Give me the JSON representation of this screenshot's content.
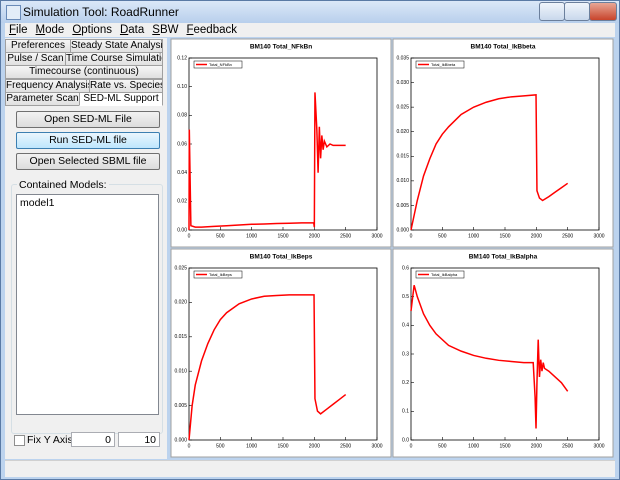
{
  "window": {
    "title": "Simulation Tool: RoadRunner"
  },
  "menu": [
    "File",
    "Mode",
    "Options",
    "Data",
    "SBW",
    "Feedback"
  ],
  "tabs": {
    "rows": [
      [
        "Preferences",
        "Steady State Analysis"
      ],
      [
        "Pulse / Scan",
        "Time Course Simulation"
      ],
      [
        "Timecourse (continuous)"
      ],
      [
        "Frequency Analysis",
        "Rate vs. Species"
      ],
      [
        "Parameter Scan",
        "SED-ML Support"
      ]
    ],
    "active": "SED-ML Support"
  },
  "buttons": [
    "Open SED-ML File",
    "Run SED-ML file",
    "Open Selected SBML file"
  ],
  "models_label": "Contained Models:",
  "models": [
    "model1"
  ],
  "fix_y_axis": {
    "label": "Fix Y Axis",
    "min": 0,
    "max": 10
  },
  "chart_data": [
    {
      "type": "line",
      "title": "BM140 Total_NFkBn",
      "legend": "upper left",
      "x": [
        0,
        5,
        30,
        100,
        200,
        400,
        600,
        800,
        1000,
        1200,
        1400,
        1600,
        1800,
        1990,
        2000,
        2010,
        2040,
        2060,
        2080,
        2100,
        2120,
        2140,
        2160,
        2200,
        2250,
        2300,
        2400,
        2500
      ],
      "series": [
        {
          "name": "Total_NFkBn",
          "color": "#ff0000",
          "values": [
            0.0,
            0.07,
            0.003,
            0.002,
            0.002,
            0.0025,
            0.003,
            0.0035,
            0.004,
            0.0042,
            0.0045,
            0.0047,
            0.005,
            0.005,
            0.002,
            0.096,
            0.07,
            0.04,
            0.072,
            0.05,
            0.066,
            0.056,
            0.062,
            0.058,
            0.06,
            0.059,
            0.059,
            0.059
          ]
        }
      ],
      "xlim": [
        0,
        3000
      ],
      "xticks": [
        0,
        500,
        1000,
        1500,
        2000,
        2500,
        3000
      ],
      "ylim": [
        0,
        0.12
      ],
      "yticks": [
        {
          "value": 0,
          "label": "0.00"
        },
        0.02,
        0.04,
        0.06,
        0.08,
        {
          "value": 0.1,
          "label": "0.10"
        },
        0.12
      ]
    },
    {
      "type": "line",
      "title": "BM140 Total_IkBbeta",
      "legend": "upper left",
      "x": [
        0,
        100,
        200,
        300,
        400,
        500,
        600,
        800,
        1000,
        1200,
        1400,
        1600,
        1800,
        1995,
        2010,
        2050,
        2100,
        2200,
        2300,
        2400,
        2500
      ],
      "series": [
        {
          "name": "Total_IkBbeta",
          "color": "#ff0000",
          "values": [
            0,
            0.006,
            0.011,
            0.0145,
            0.0175,
            0.0195,
            0.021,
            0.0235,
            0.025,
            0.026,
            0.0267,
            0.0271,
            0.0273,
            0.0275,
            0.008,
            0.0065,
            0.006,
            0.0068,
            0.0077,
            0.0086,
            0.0095
          ]
        }
      ],
      "xlim": [
        0,
        3000
      ],
      "xticks": [
        0,
        500,
        1000,
        1500,
        2000,
        2500,
        3000
      ],
      "ylim": [
        0,
        0.035
      ],
      "yticks": [
        {
          "value": 0,
          "label": "0.000"
        },
        0.005,
        {
          "value": 0.01,
          "label": "0.010"
        },
        0.015,
        {
          "value": 0.02,
          "label": "0.020"
        },
        0.025,
        {
          "value": 0.03,
          "label": "0.030"
        },
        0.035
      ]
    },
    {
      "type": "line",
      "title": "BM140 Total_IkBeps",
      "legend": "upper left",
      "x": [
        0,
        50,
        100,
        200,
        300,
        400,
        500,
        600,
        800,
        1000,
        1200,
        1400,
        1600,
        1800,
        1995,
        2010,
        2050,
        2100,
        2200,
        2300,
        2400,
        2500
      ],
      "series": [
        {
          "name": "Total_IkBeps",
          "color": "#ff0000",
          "values": [
            0,
            0.005,
            0.008,
            0.0115,
            0.014,
            0.016,
            0.0175,
            0.0185,
            0.0198,
            0.0205,
            0.0209,
            0.021,
            0.0211,
            0.0211,
            0.0211,
            0.006,
            0.0042,
            0.0038,
            0.0045,
            0.0052,
            0.0059,
            0.0066
          ]
        }
      ],
      "xlim": [
        0,
        3000
      ],
      "xticks": [
        0,
        500,
        1000,
        1500,
        2000,
        2500,
        3000
      ],
      "ylim": [
        0,
        0.025
      ],
      "yticks": [
        {
          "value": 0,
          "label": "0.000"
        },
        0.005,
        {
          "value": 0.01,
          "label": "0.010"
        },
        0.015,
        {
          "value": 0.02,
          "label": "0.020"
        },
        0.025
      ]
    },
    {
      "type": "line",
      "title": "BM140 Total_IkBalpha",
      "legend": "upper left",
      "x": [
        0,
        50,
        100,
        200,
        300,
        400,
        600,
        800,
        1000,
        1200,
        1400,
        1600,
        1800,
        1950,
        1980,
        1995,
        2010,
        2030,
        2050,
        2070,
        2090,
        2110,
        2130,
        2200,
        2300,
        2400,
        2500
      ],
      "series": [
        {
          "name": "Total_IkBalpha",
          "color": "#ff0000",
          "values": [
            0.45,
            0.54,
            0.5,
            0.44,
            0.4,
            0.37,
            0.33,
            0.31,
            0.295,
            0.285,
            0.278,
            0.274,
            0.27,
            0.27,
            0.15,
            0.04,
            0.2,
            0.35,
            0.22,
            0.28,
            0.24,
            0.27,
            0.25,
            0.24,
            0.22,
            0.2,
            0.17
          ]
        }
      ],
      "xlim": [
        0,
        3000
      ],
      "xticks": [
        0,
        500,
        1000,
        1500,
        2000,
        2500,
        3000
      ],
      "ylim": [
        0,
        0.6
      ],
      "yticks": [
        {
          "value": 0,
          "label": "0.0"
        },
        0.1,
        0.2,
        0.3,
        0.4,
        0.5,
        0.6
      ]
    }
  ]
}
